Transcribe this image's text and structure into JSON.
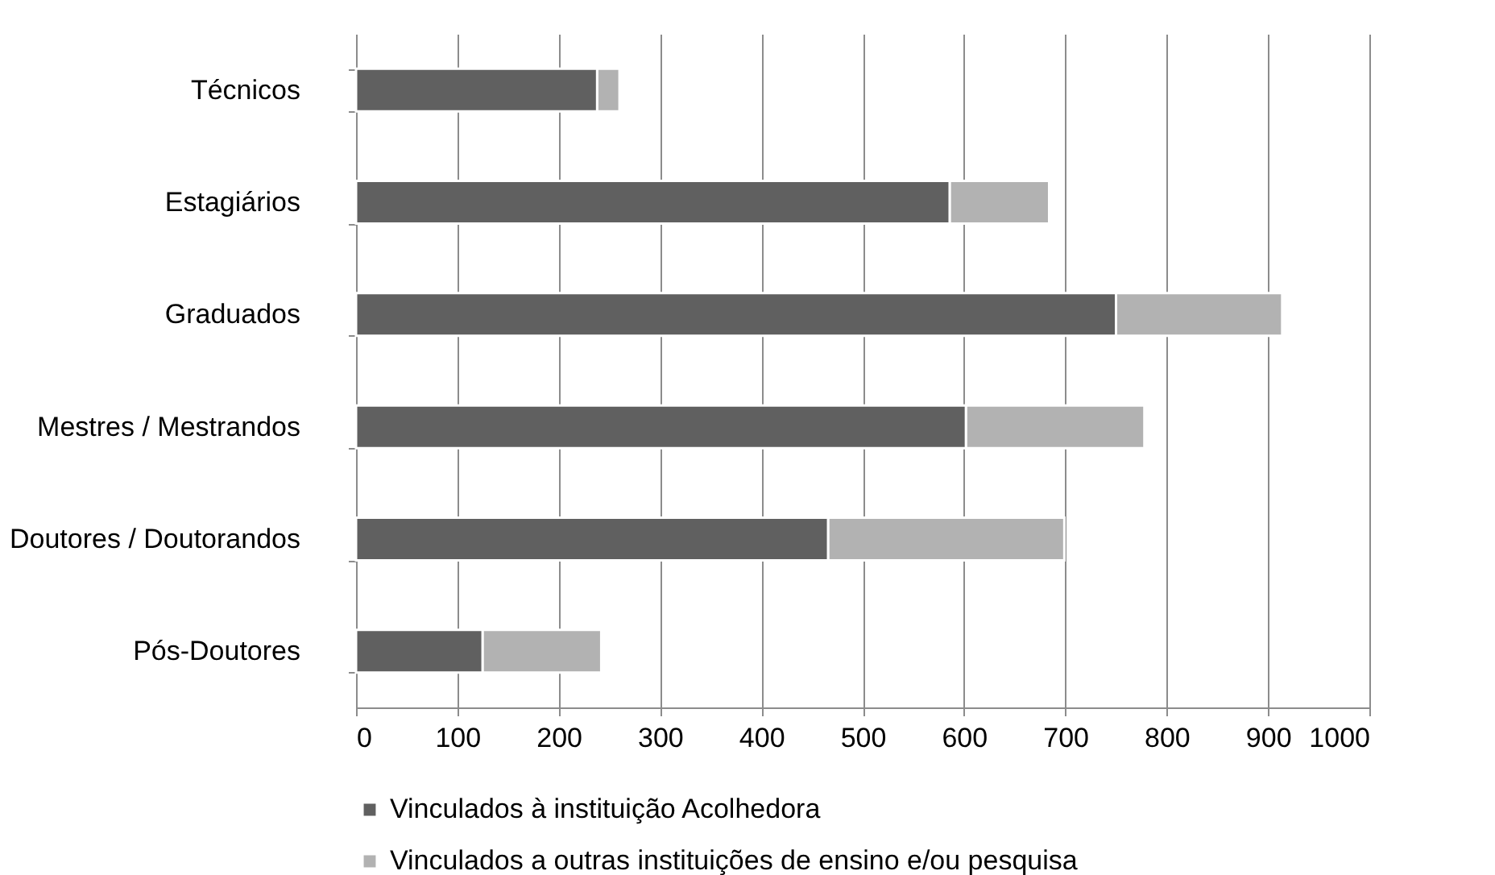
{
  "chart_data": {
    "type": "bar",
    "orientation": "horizontal",
    "stacked": true,
    "categories": [
      "Técnicos",
      "Estagiários",
      "Graduados",
      "Mestres / Mestrandos",
      "Doutores / Doutorandos",
      "Pós-Doutores"
    ],
    "series": [
      {
        "name": "Vinculados à instituição Acolhedora",
        "color": "#606060",
        "values": [
          238,
          586,
          750,
          602,
          466,
          125
        ]
      },
      {
        "name": "Vinculados a outras instituições de ensino e/ou pesquisa",
        "color": "#b2b2b2",
        "values": [
          22,
          98,
          164,
          176,
          233,
          117
        ]
      }
    ],
    "xlim": [
      0,
      1000
    ],
    "xticks": [
      0,
      100,
      200,
      300,
      400,
      500,
      600,
      700,
      800,
      900,
      1000
    ],
    "grid": "x",
    "legend": "bottom"
  }
}
